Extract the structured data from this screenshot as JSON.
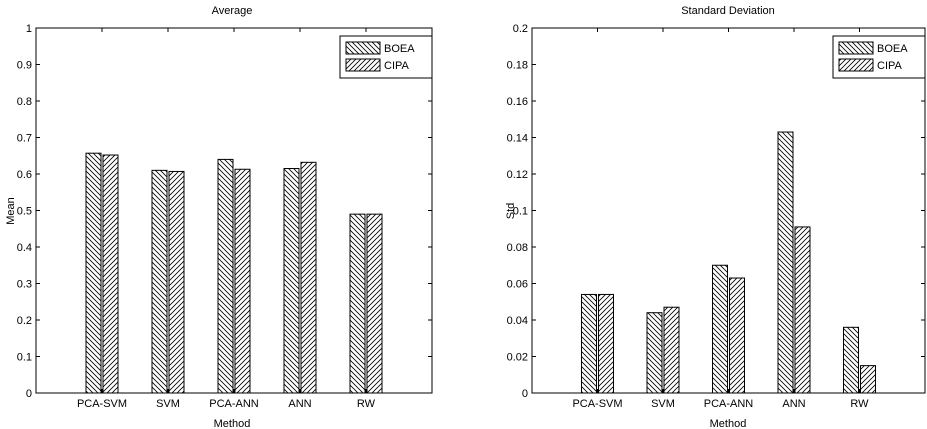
{
  "chart_data": [
    {
      "type": "bar",
      "title": "Average",
      "xlabel": "Method",
      "ylabel": "Mean",
      "categories": [
        "PCA-SVM",
        "SVM",
        "PCA-ANN",
        "ANN",
        "RW"
      ],
      "series": [
        {
          "name": "BOEA",
          "values": [
            0.657,
            0.61,
            0.64,
            0.615,
            0.49
          ]
        },
        {
          "name": "CIPA",
          "values": [
            0.652,
            0.607,
            0.613,
            0.632,
            0.49
          ]
        }
      ],
      "ylim": [
        0,
        1
      ],
      "yticks": [
        "0",
        "0.1",
        "0.2",
        "0.3",
        "0.4",
        "0.5",
        "0.6",
        "0.7",
        "0.8",
        "0.9",
        "1"
      ],
      "legend": "top-right",
      "grid": false
    },
    {
      "type": "bar",
      "title": "Standard Deviation",
      "xlabel": "Method",
      "ylabel": "Std",
      "categories": [
        "PCA-SVM",
        "SVM",
        "PCA-ANN",
        "ANN",
        "RW"
      ],
      "series": [
        {
          "name": "BOEA",
          "values": [
            0.054,
            0.044,
            0.07,
            0.143,
            0.036
          ]
        },
        {
          "name": "CIPA",
          "values": [
            0.054,
            0.047,
            0.063,
            0.091,
            0.015
          ]
        }
      ],
      "ylim": [
        0,
        0.2
      ],
      "yticks": [
        "0",
        "0.02",
        "0.04",
        "0.06",
        "0.08",
        "0.1",
        "0.12",
        "0.14",
        "0.16",
        "0.18",
        "0.2"
      ],
      "legend": "top-right",
      "grid": false
    }
  ]
}
